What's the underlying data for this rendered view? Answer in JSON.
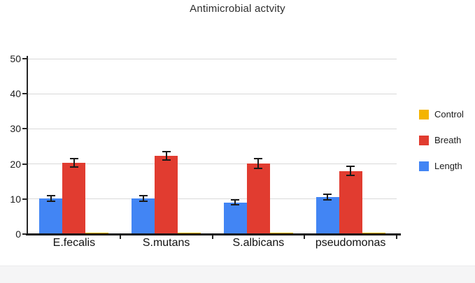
{
  "title": "Antimicrobial actvity",
  "colors": {
    "length_blue": "#4285f4",
    "breath_red": "#e13c30",
    "control_yellow": "#f4b400",
    "grid": "#d9d9d9",
    "axis": "#1a1a1a",
    "error_bar": "#1a1a1a",
    "footer_strip": "#f5f5f6"
  },
  "legend": {
    "position": "right",
    "items": [
      {
        "label": "Control",
        "color": "#f4b400"
      },
      {
        "label": "Breath",
        "color": "#e13c30"
      },
      {
        "label": "Length",
        "color": "#4285f4"
      }
    ]
  },
  "chart_data": {
    "type": "bar",
    "title": "Antimicrobial actvity",
    "categories": [
      "E.fecalis",
      "S.mutans",
      "S.albicans",
      "pseudomonas"
    ],
    "series": [
      {
        "name": "Length",
        "color": "#4285f4",
        "values": [
          10.2,
          10.1,
          9.0,
          10.5
        ],
        "errors": [
          0.8,
          0.8,
          0.7,
          0.8
        ]
      },
      {
        "name": "Breath",
        "color": "#e13c30",
        "values": [
          20.3,
          22.3,
          20.2,
          18.0
        ],
        "errors": [
          1.2,
          1.2,
          1.4,
          1.3
        ]
      },
      {
        "name": "Control",
        "color": "#f4b400",
        "values": [
          0.5,
          0.5,
          0.5,
          0.5
        ],
        "errors": [
          0,
          0,
          0,
          0
        ]
      }
    ],
    "bar_order_left_to_right": [
      "Length",
      "Breath",
      "Control"
    ],
    "legend_order_top_to_bottom": [
      "Control",
      "Breath",
      "Length"
    ],
    "xlabel": "",
    "ylabel": "",
    "ylim": [
      0,
      50
    ],
    "yticks": [
      0,
      10,
      20,
      30,
      40,
      50
    ],
    "grid": true,
    "error_bars": true,
    "legend_position": "right"
  }
}
